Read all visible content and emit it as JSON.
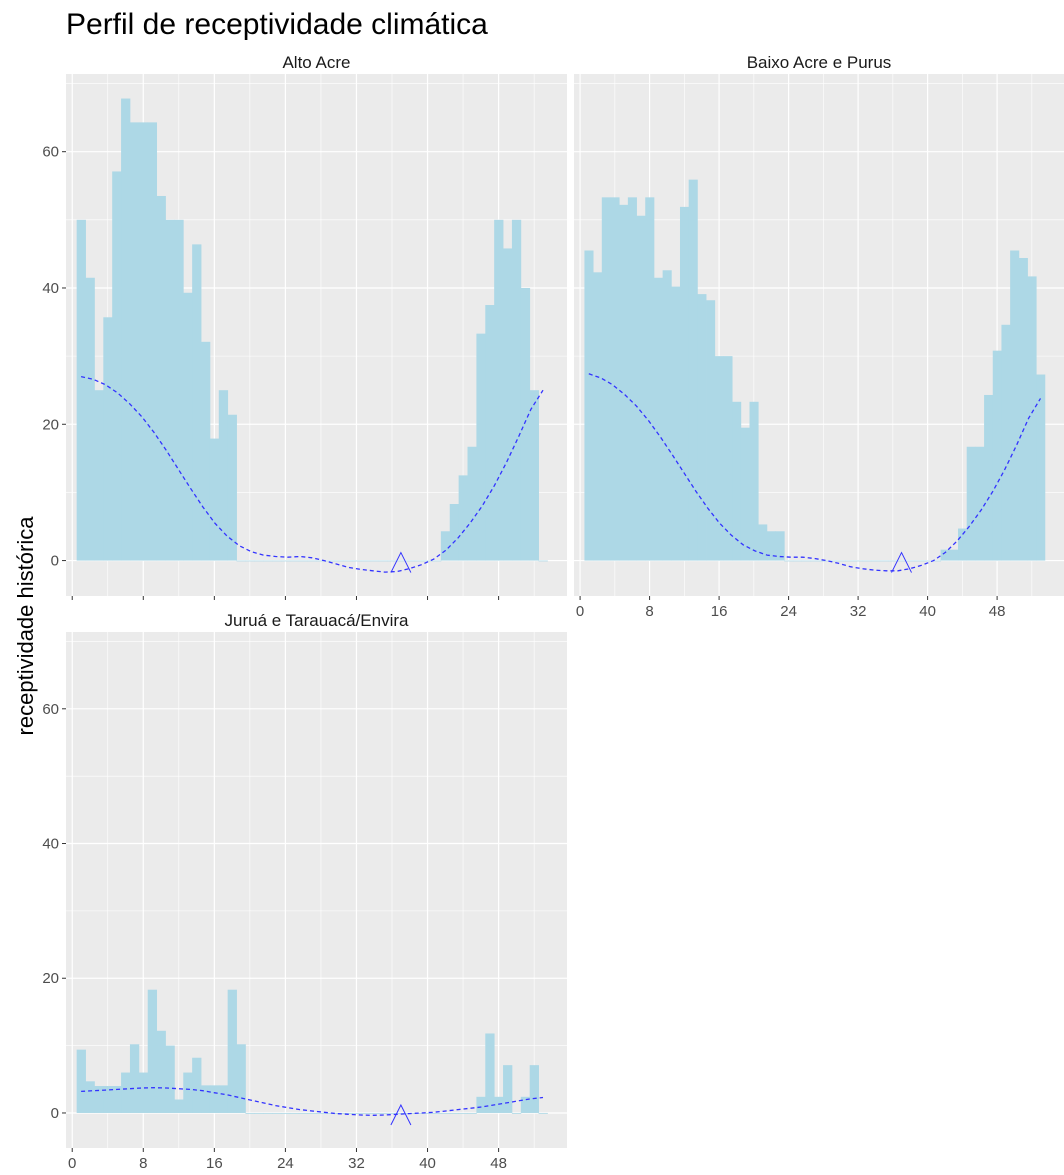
{
  "title": "Perfil de receptividade climática",
  "ylabel": "receptividade histórica",
  "xlabel": "",
  "colors": {
    "panel": "#ebebeb",
    "grid": "#ffffff",
    "bar": "#add8e6",
    "curve": "#3333ff",
    "marker": "#3333ff",
    "tick": "#4d4d4d"
  },
  "chart_data": {
    "type": "bar",
    "x_tick_labels": [
      "0",
      "8",
      "16",
      "24",
      "32",
      "40",
      "48"
    ],
    "y_tick_labels": [
      "0",
      "20",
      "40",
      "60"
    ],
    "xlim": [
      -0.7,
      55.7
    ],
    "ylim": [
      -5.2,
      71.4
    ],
    "marker_x": 37,
    "panels": [
      {
        "name": "Alto Acre",
        "x": [
          1,
          2,
          3,
          4,
          5,
          6,
          7,
          8,
          9,
          10,
          11,
          12,
          13,
          14,
          15,
          16,
          17,
          18,
          19,
          20,
          21,
          22,
          23,
          24,
          25,
          26,
          27,
          28,
          29,
          30,
          31,
          32,
          33,
          34,
          35,
          36,
          37,
          38,
          39,
          40,
          41,
          42,
          43,
          44,
          45,
          46,
          47,
          48,
          49,
          50,
          51,
          52,
          53
        ],
        "values": [
          50,
          41.5,
          25,
          35.7,
          57.1,
          67.8,
          64.3,
          64.3,
          64.3,
          53.5,
          50,
          50,
          39.3,
          46.4,
          32.1,
          17.9,
          25,
          21.4,
          0,
          0,
          0,
          0,
          0,
          0,
          0,
          0,
          0,
          0,
          0,
          0,
          0,
          0,
          0,
          0,
          0,
          0,
          0,
          0,
          0,
          0,
          0,
          4.3,
          8.3,
          12.5,
          16.7,
          33.3,
          37.5,
          50,
          45.8,
          50,
          40,
          25,
          0
        ],
        "trend": [
          27,
          26.6,
          25.8,
          24.6,
          23,
          21.1,
          18.8,
          16.2,
          13.4,
          10.6,
          7.9,
          5.5,
          3.6,
          2.2,
          1.3,
          0.8,
          0.6,
          0.5,
          0.6,
          0.4,
          0,
          -0.5,
          -1,
          -1.3,
          -1.5,
          -1.7,
          -1.6,
          -1.2,
          -0.6,
          0.2,
          1.5,
          3.3,
          5.5,
          8,
          11,
          14.4,
          18.2,
          22.2,
          25
        ]
      },
      {
        "name": "Baixo Acre e Purus",
        "x": [
          1,
          2,
          3,
          4,
          5,
          6,
          7,
          8,
          9,
          10,
          11,
          12,
          13,
          14,
          15,
          16,
          17,
          18,
          19,
          20,
          21,
          22,
          23,
          24,
          25,
          26,
          27,
          28,
          29,
          30,
          31,
          32,
          33,
          34,
          35,
          36,
          37,
          38,
          39,
          40,
          41,
          42,
          43,
          44,
          45,
          46,
          47,
          48,
          49,
          50,
          51,
          52,
          53
        ],
        "values": [
          45.5,
          42.3,
          53.3,
          53.3,
          52.2,
          53.3,
          50.6,
          53.3,
          41.5,
          42.6,
          40.2,
          51.9,
          55.9,
          39.1,
          38.2,
          30,
          30,
          23.3,
          19.5,
          23.3,
          5.3,
          4.3,
          4.3,
          0,
          0,
          0,
          0,
          0,
          0,
          0,
          0,
          0,
          0,
          0,
          0,
          0,
          0,
          0,
          0,
          0,
          0,
          1.6,
          1.6,
          4.7,
          16.7,
          16.7,
          24.3,
          30.8,
          34.6,
          45.5,
          44.4,
          41.7,
          27.3
        ],
        "trend": [
          27.4,
          26.8,
          25.8,
          24.4,
          22.7,
          20.6,
          18.2,
          15.6,
          12.9,
          10.2,
          7.7,
          5.5,
          3.7,
          2.3,
          1.4,
          0.8,
          0.6,
          0.5,
          0.5,
          0.3,
          0,
          -0.4,
          -0.9,
          -1.2,
          -1.4,
          -1.5,
          -1.5,
          -1.2,
          -0.7,
          0,
          1.2,
          2.9,
          5,
          7.4,
          10.2,
          13.4,
          17,
          20.9,
          23.8
        ]
      },
      {
        "name": "Juruá e Tarauacá/Envira",
        "x": [
          1,
          2,
          3,
          4,
          5,
          6,
          7,
          8,
          9,
          10,
          11,
          12,
          13,
          14,
          15,
          16,
          17,
          18,
          19,
          20,
          21,
          22,
          23,
          24,
          25,
          26,
          27,
          28,
          29,
          30,
          31,
          32,
          33,
          34,
          35,
          36,
          37,
          38,
          39,
          40,
          41,
          42,
          43,
          44,
          45,
          46,
          47,
          48,
          49,
          50,
          51,
          52,
          53
        ],
        "values": [
          9.4,
          4.7,
          4,
          4,
          4,
          6,
          10.2,
          6,
          18.3,
          12.2,
          10,
          2,
          6,
          8.2,
          4.1,
          4.1,
          4.1,
          18.3,
          10.2,
          0,
          0,
          0,
          0,
          0,
          0,
          0,
          0,
          0,
          0,
          0,
          0,
          0,
          0,
          0,
          0,
          0,
          0,
          0,
          0,
          0,
          0,
          0,
          0,
          0,
          0,
          2.4,
          11.8,
          2.4,
          7.1,
          0,
          2.4,
          7.1,
          0
        ],
        "trend": [
          3.2,
          3.3,
          3.4,
          3.5,
          3.6,
          3.7,
          3.75,
          3.7,
          3.6,
          3.5,
          3.3,
          3,
          2.7,
          2.3,
          1.9,
          1.5,
          1.1,
          0.8,
          0.5,
          0.3,
          0.1,
          -0.1,
          -0.2,
          -0.3,
          -0.35,
          -0.3,
          -0.2,
          -0.1,
          0,
          0.1,
          0.3,
          0.5,
          0.7,
          0.9,
          1.2,
          1.5,
          1.8,
          2.1,
          2.3
        ]
      }
    ],
    "grid": true
  }
}
